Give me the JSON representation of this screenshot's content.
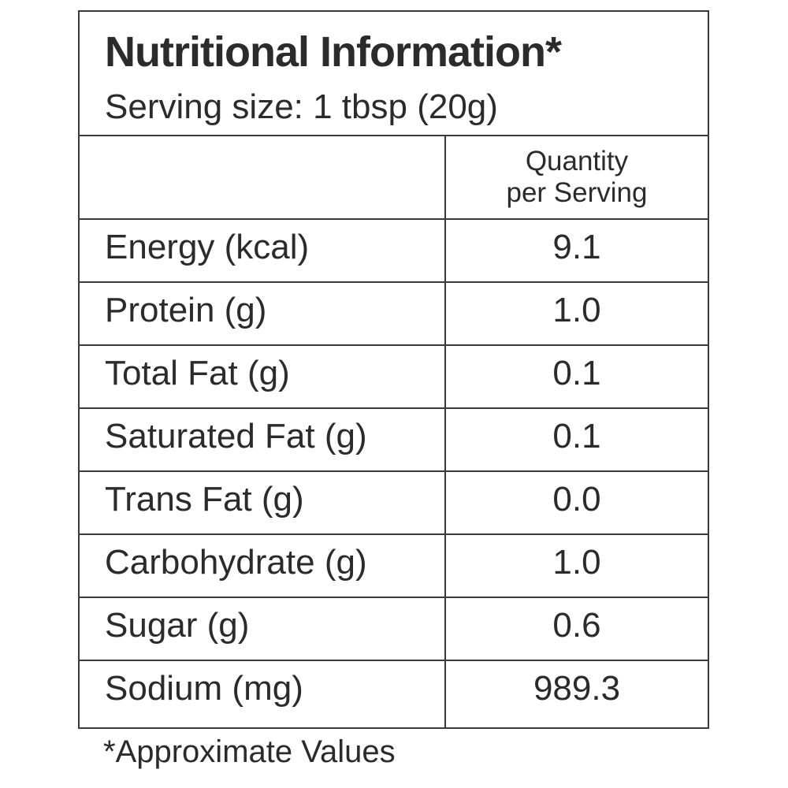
{
  "header": {
    "title": "Nutritional Information*",
    "serving": "Serving size: 1 tbsp (20g)"
  },
  "column_header": {
    "line1": "Quantity",
    "line2": "per Serving"
  },
  "rows": [
    {
      "name": "Energy (kcal)",
      "value": "9.1"
    },
    {
      "name": "Protein (g)",
      "value": "1.0"
    },
    {
      "name": "Total Fat (g)",
      "value": "0.1"
    },
    {
      "name": "Saturated Fat (g)",
      "value": "0.1"
    },
    {
      "name": "Trans Fat (g)",
      "value": "0.0"
    },
    {
      "name": "Carbohydrate (g)",
      "value": "1.0"
    },
    {
      "name": "Sugar (g)",
      "value": "0.6"
    },
    {
      "name": "Sodium (mg)",
      "value": "989.3"
    }
  ],
  "footnote": "*Approximate Values"
}
